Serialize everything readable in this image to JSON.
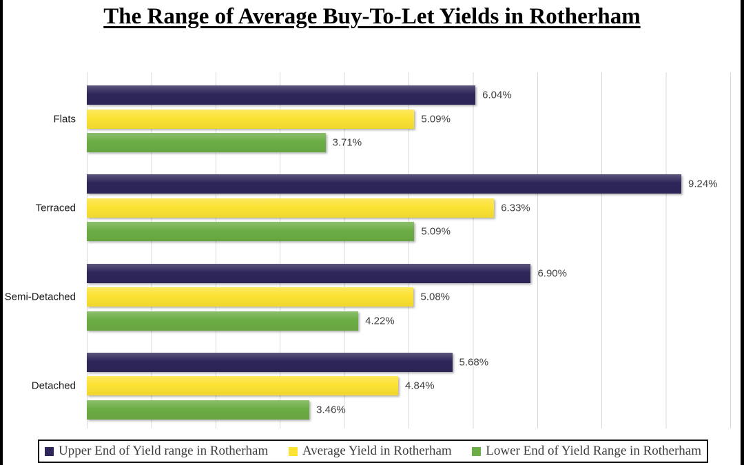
{
  "title": "The Range of Average Buy-To-Let Yields in Rotherham",
  "chart_data": {
    "type": "bar",
    "orientation": "horizontal",
    "title": "The Range of Average Buy-To-Let Yields in Rotherham",
    "categories": [
      "Flats",
      "Terraced",
      "Semi-Detached",
      "Detached"
    ],
    "series": [
      {
        "name": "Upper End of Yield range in Rotherham",
        "color": "#2E2659",
        "values": [
          6.04,
          9.24,
          6.9,
          5.68
        ]
      },
      {
        "name": "Average Yield in Rotherham",
        "color": "#FCE233",
        "values": [
          5.09,
          6.33,
          5.08,
          4.84
        ]
      },
      {
        "name": "Lower End of Yield Range in Rotherham",
        "color": "#6CAD45",
        "values": [
          3.71,
          5.09,
          4.22,
          3.46
        ]
      }
    ],
    "value_label_format": "0.00%",
    "xlabel": "",
    "ylabel": "",
    "xlim": [
      0,
      10
    ],
    "gridline_interval": 1,
    "grid": true,
    "x_tick_labels_visible": false,
    "legend_position": "bottom",
    "gridline_color": "#D8D8D8",
    "value_label_color": "#404040"
  }
}
